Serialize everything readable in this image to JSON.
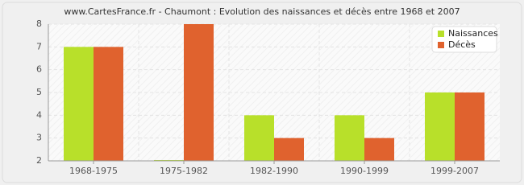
{
  "chart_data": {
    "type": "bar",
    "title": "www.CartesFrance.fr - Chaumont : Evolution des naissances et décès entre 1968 et 2007",
    "categories": [
      "1968-1975",
      "1975-1982",
      "1982-1990",
      "1990-1999",
      "1999-2007"
    ],
    "series": [
      {
        "name": "Naissances",
        "color": "#b8e02a",
        "values": [
          7,
          2,
          4,
          4,
          5
        ]
      },
      {
        "name": "Décès",
        "color": "#e0622e",
        "values": [
          7,
          8,
          3,
          3,
          5
        ]
      }
    ],
    "ylim": [
      2,
      8
    ],
    "yticks": [
      2,
      3,
      4,
      5,
      6,
      7,
      8
    ],
    "grid": true,
    "legend": "top-right"
  }
}
